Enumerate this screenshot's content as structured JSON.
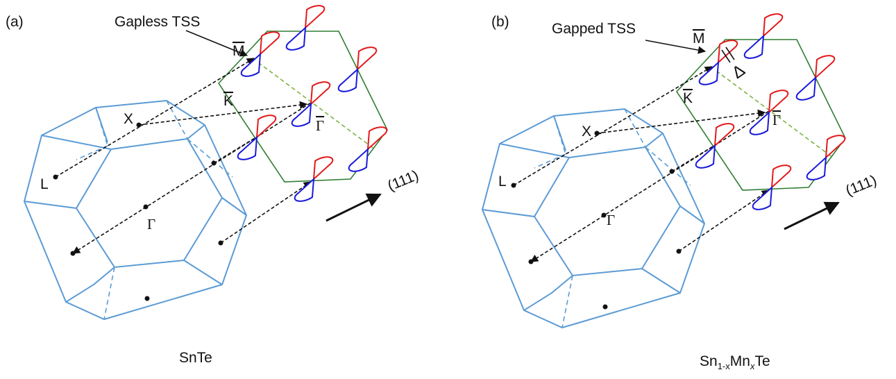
{
  "panels": [
    {
      "label": "(a)",
      "annotation": "Gapless TSS",
      "labels": {
        "M": "M",
        "K": "K",
        "Gamma_bar": "Γ",
        "X": "X",
        "L": "L",
        "Gamma": "Γ"
      },
      "direction": "(111)",
      "caption": [
        "SnTe"
      ]
    },
    {
      "label": "(b)",
      "annotation": "Gapped TSS",
      "labels": {
        "M": "M",
        "K": "K",
        "Gamma_bar": "Γ",
        "X": "X",
        "L": "L",
        "Gamma": "Γ"
      },
      "gap": "Δ",
      "direction": "(111)",
      "caption": [
        "Sn",
        "1-x",
        "Mn",
        "x",
        "Te"
      ]
    }
  ]
}
